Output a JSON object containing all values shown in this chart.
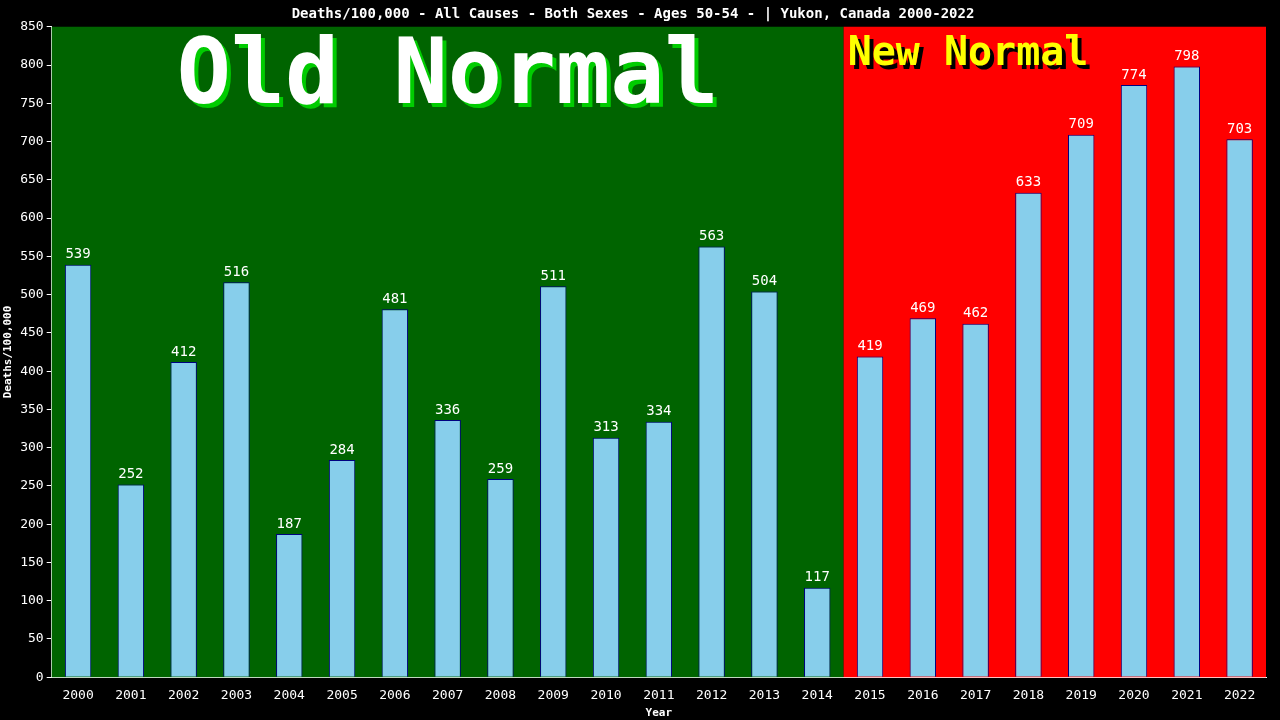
{
  "chart_data": {
    "type": "bar",
    "title": "Deaths/100,000 - All Causes - Both Sexes - Ages 50-54 - | Yukon, Canada 2000-2022",
    "xlabel": "Year",
    "ylabel": "Deaths/100,000",
    "categories": [
      "2000",
      "2001",
      "2002",
      "2003",
      "2004",
      "2005",
      "2006",
      "2007",
      "2008",
      "2009",
      "2010",
      "2011",
      "2012",
      "2013",
      "2014",
      "2015",
      "2016",
      "2017",
      "2018",
      "2019",
      "2020",
      "2021",
      "2022"
    ],
    "values": [
      539,
      252,
      412,
      516,
      187,
      284,
      481,
      336,
      259,
      511,
      313,
      334,
      563,
      504,
      117,
      419,
      469,
      462,
      633,
      709,
      774,
      798,
      703
    ],
    "color": "#87ceeb",
    "ylim": [
      0,
      850
    ],
    "yticks": [
      0,
      50,
      100,
      150,
      200,
      250,
      300,
      350,
      400,
      450,
      500,
      550,
      600,
      650,
      700,
      750,
      800,
      850
    ],
    "grid": false,
    "legend": false,
    "data_labels": true,
    "bands": [
      {
        "axis": "x",
        "from": "2000",
        "to": "2014",
        "label": "Old Normal",
        "color": "#006400"
      },
      {
        "axis": "x",
        "from": "2015",
        "to": "2022",
        "label": "New Normal",
        "color": "#ff0000"
      }
    ]
  }
}
